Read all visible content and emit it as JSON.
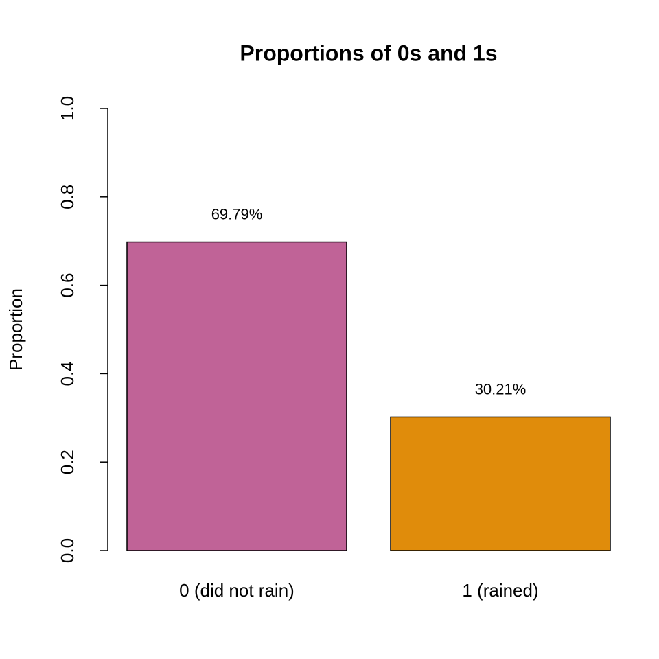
{
  "chart_data": {
    "type": "bar",
    "title": "Proportions of 0s and 1s",
    "y_label": "Proportion",
    "categories": [
      "0 (did not rain)",
      "1 (rained)"
    ],
    "values": [
      0.6979,
      0.3021
    ],
    "value_labels": [
      "69.79%",
      "30.21%"
    ],
    "colors": [
      "#c06397",
      "#e08c0b"
    ],
    "ylim": [
      0,
      1
    ],
    "yticks": [
      {
        "value": 0,
        "label": "0.0"
      },
      0.2,
      0.4,
      0.6,
      0.8,
      {
        "value": 1,
        "label": "1.0"
      }
    ]
  }
}
